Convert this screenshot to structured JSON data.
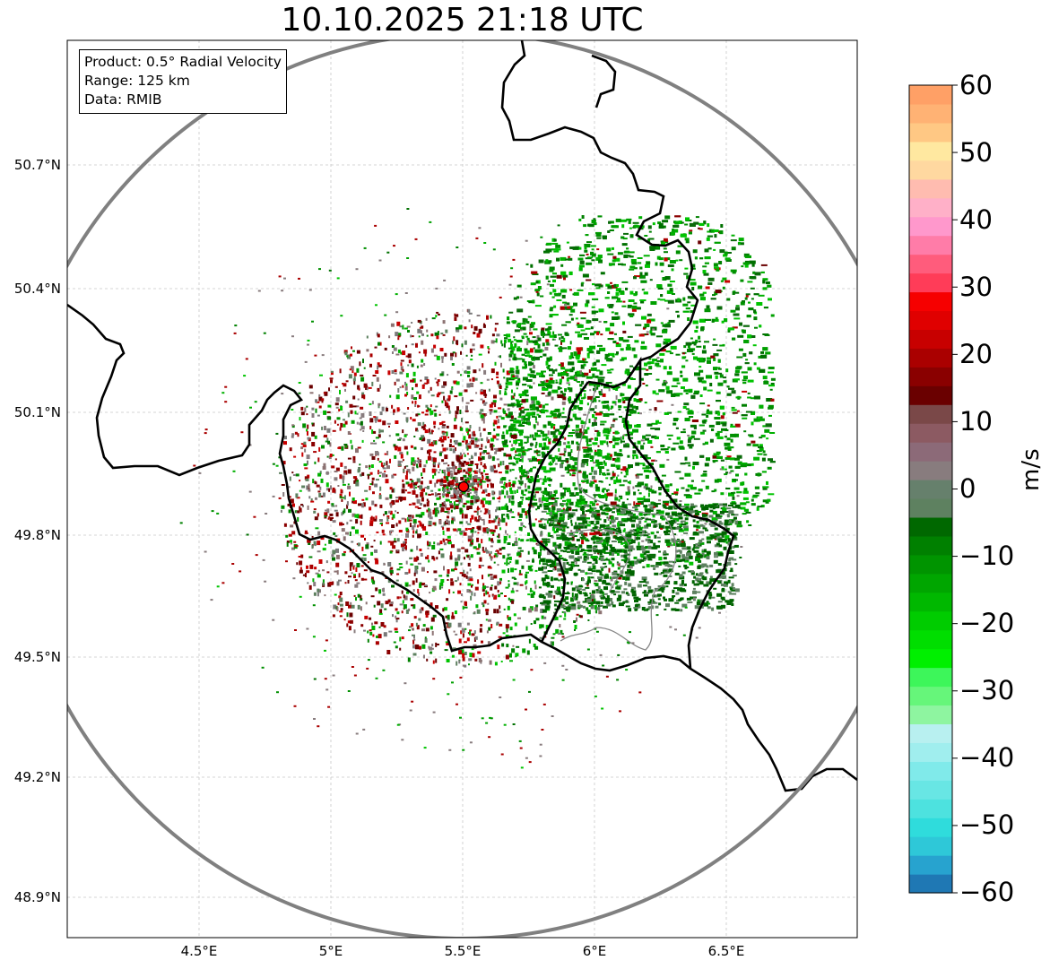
{
  "title": "10.10.2025 21:18 UTC",
  "info": {
    "product": "Product: 0.5° Radial Velocity",
    "range": "Range: 125 km",
    "source": "Data: RMIB"
  },
  "axes": {
    "lat_labels": [
      "50.7°N",
      "50.4°N",
      "50.1°N",
      "49.8°N",
      "49.5°N",
      "49.2°N",
      "48.9°N"
    ],
    "lon_labels": [
      "4.5°E",
      "5°E",
      "5.5°E",
      "6°E",
      "6.5°E"
    ]
  },
  "colorbar": {
    "unit": "m/s",
    "min": -60,
    "max": 60,
    "ticks": [
      "60",
      "50",
      "40",
      "30",
      "20",
      "10",
      "0",
      "−10",
      "−20",
      "−30",
      "−40",
      "−50",
      "−60"
    ],
    "colors": [
      "#1f78b4",
      "#27a3cf",
      "#2ec8d8",
      "#2fdcdc",
      "#4de2df",
      "#68e6e4",
      "#80eaea",
      "#a0eeee",
      "#b8f0f0",
      "#8ef5a0",
      "#66f67a",
      "#3df65a",
      "#00f000",
      "#00de00",
      "#00cc00",
      "#00b800",
      "#00a600",
      "#009400",
      "#008000",
      "#006800",
      "#5e8160",
      "#66806c",
      "#887c7e",
      "#8c6a78",
      "#8c5a62",
      "#7a4848",
      "#6a0000",
      "#8a0000",
      "#aa0000",
      "#c80000",
      "#e00000",
      "#f60000",
      "#ff3c58",
      "#ff5c7c",
      "#ff7ca8",
      "#ff98cc",
      "#ffb0c8",
      "#ffbcb0",
      "#ffd8a0",
      "#ffe8a0",
      "#ffc884",
      "#ffb274",
      "#ffa066"
    ]
  },
  "radar": {
    "site_marker": "radar-site-red-dot",
    "site_color": "#ff0000"
  }
}
